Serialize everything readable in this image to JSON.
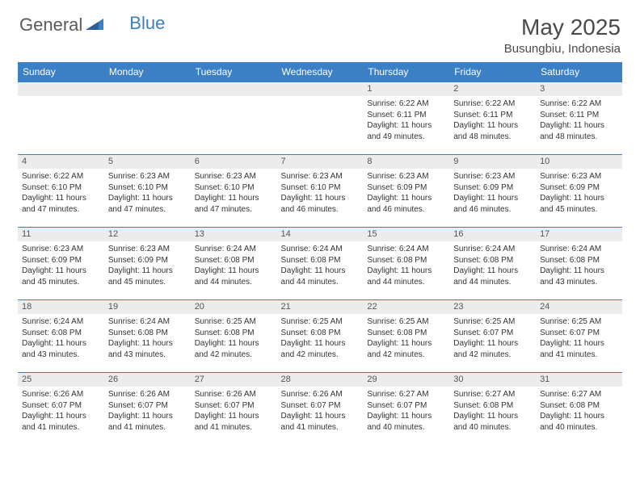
{
  "logo": {
    "text1": "General",
    "text2": "Blue"
  },
  "title": "May 2025",
  "location": "Busungbiu, Indonesia",
  "header_bg": "#3b7fc4",
  "daynum_bg": "#ececec",
  "days": [
    "Sunday",
    "Monday",
    "Tuesday",
    "Wednesday",
    "Thursday",
    "Friday",
    "Saturday"
  ],
  "weeks": [
    [
      null,
      null,
      null,
      null,
      {
        "n": "1",
        "sr": "6:22 AM",
        "ss": "6:11 PM",
        "dl": "11 hours and 49 minutes."
      },
      {
        "n": "2",
        "sr": "6:22 AM",
        "ss": "6:11 PM",
        "dl": "11 hours and 48 minutes."
      },
      {
        "n": "3",
        "sr": "6:22 AM",
        "ss": "6:11 PM",
        "dl": "11 hours and 48 minutes."
      }
    ],
    [
      {
        "n": "4",
        "sr": "6:22 AM",
        "ss": "6:10 PM",
        "dl": "11 hours and 47 minutes."
      },
      {
        "n": "5",
        "sr": "6:23 AM",
        "ss": "6:10 PM",
        "dl": "11 hours and 47 minutes."
      },
      {
        "n": "6",
        "sr": "6:23 AM",
        "ss": "6:10 PM",
        "dl": "11 hours and 47 minutes."
      },
      {
        "n": "7",
        "sr": "6:23 AM",
        "ss": "6:10 PM",
        "dl": "11 hours and 46 minutes."
      },
      {
        "n": "8",
        "sr": "6:23 AM",
        "ss": "6:09 PM",
        "dl": "11 hours and 46 minutes."
      },
      {
        "n": "9",
        "sr": "6:23 AM",
        "ss": "6:09 PM",
        "dl": "11 hours and 46 minutes."
      },
      {
        "n": "10",
        "sr": "6:23 AM",
        "ss": "6:09 PM",
        "dl": "11 hours and 45 minutes."
      }
    ],
    [
      {
        "n": "11",
        "sr": "6:23 AM",
        "ss": "6:09 PM",
        "dl": "11 hours and 45 minutes."
      },
      {
        "n": "12",
        "sr": "6:23 AM",
        "ss": "6:09 PM",
        "dl": "11 hours and 45 minutes."
      },
      {
        "n": "13",
        "sr": "6:24 AM",
        "ss": "6:08 PM",
        "dl": "11 hours and 44 minutes."
      },
      {
        "n": "14",
        "sr": "6:24 AM",
        "ss": "6:08 PM",
        "dl": "11 hours and 44 minutes."
      },
      {
        "n": "15",
        "sr": "6:24 AM",
        "ss": "6:08 PM",
        "dl": "11 hours and 44 minutes."
      },
      {
        "n": "16",
        "sr": "6:24 AM",
        "ss": "6:08 PM",
        "dl": "11 hours and 44 minutes."
      },
      {
        "n": "17",
        "sr": "6:24 AM",
        "ss": "6:08 PM",
        "dl": "11 hours and 43 minutes."
      }
    ],
    [
      {
        "n": "18",
        "sr": "6:24 AM",
        "ss": "6:08 PM",
        "dl": "11 hours and 43 minutes."
      },
      {
        "n": "19",
        "sr": "6:24 AM",
        "ss": "6:08 PM",
        "dl": "11 hours and 43 minutes."
      },
      {
        "n": "20",
        "sr": "6:25 AM",
        "ss": "6:08 PM",
        "dl": "11 hours and 42 minutes."
      },
      {
        "n": "21",
        "sr": "6:25 AM",
        "ss": "6:08 PM",
        "dl": "11 hours and 42 minutes."
      },
      {
        "n": "22",
        "sr": "6:25 AM",
        "ss": "6:08 PM",
        "dl": "11 hours and 42 minutes."
      },
      {
        "n": "23",
        "sr": "6:25 AM",
        "ss": "6:07 PM",
        "dl": "11 hours and 42 minutes."
      },
      {
        "n": "24",
        "sr": "6:25 AM",
        "ss": "6:07 PM",
        "dl": "11 hours and 41 minutes."
      }
    ],
    [
      {
        "n": "25",
        "sr": "6:26 AM",
        "ss": "6:07 PM",
        "dl": "11 hours and 41 minutes."
      },
      {
        "n": "26",
        "sr": "6:26 AM",
        "ss": "6:07 PM",
        "dl": "11 hours and 41 minutes."
      },
      {
        "n": "27",
        "sr": "6:26 AM",
        "ss": "6:07 PM",
        "dl": "11 hours and 41 minutes."
      },
      {
        "n": "28",
        "sr": "6:26 AM",
        "ss": "6:07 PM",
        "dl": "11 hours and 41 minutes."
      },
      {
        "n": "29",
        "sr": "6:27 AM",
        "ss": "6:07 PM",
        "dl": "11 hours and 40 minutes."
      },
      {
        "n": "30",
        "sr": "6:27 AM",
        "ss": "6:08 PM",
        "dl": "11 hours and 40 minutes."
      },
      {
        "n": "31",
        "sr": "6:27 AM",
        "ss": "6:08 PM",
        "dl": "11 hours and 40 minutes."
      }
    ]
  ],
  "labels": {
    "sunrise": "Sunrise:",
    "sunset": "Sunset:",
    "daylight": "Daylight:"
  }
}
